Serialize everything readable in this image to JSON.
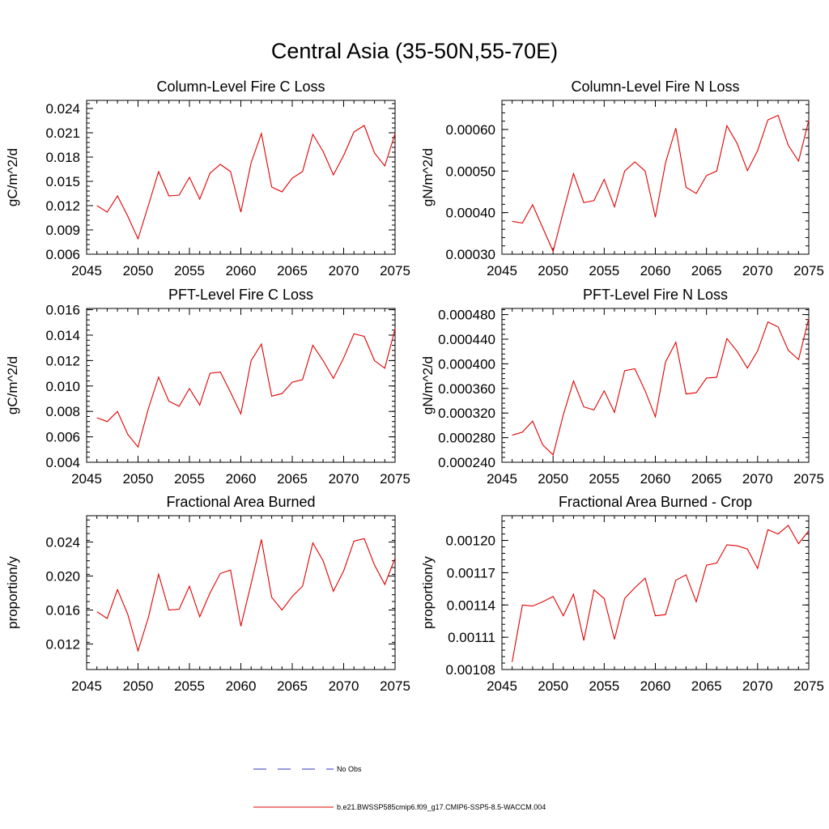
{
  "figure": {
    "title": "Central Asia (35-50N,55-70E)"
  },
  "legend": {
    "entries": [
      {
        "label": "No Obs",
        "color": "#3030c0",
        "style": "dashed"
      },
      {
        "label": "b.e21.BWSSP585cmip6.f09_g17.CMIP6-SSP5-8.5-WACCM.004",
        "color": "#e00000",
        "style": "solid"
      }
    ]
  },
  "chart_data": [
    {
      "type": "line",
      "title": "Column-Level Fire C Loss",
      "ylabel": "gC/m^2/d",
      "xlim": [
        2045,
        2075
      ],
      "ylim": [
        0.006,
        0.025
      ],
      "xticks": [
        "2045",
        "2050",
        "2055",
        "2060",
        "2065",
        "2070",
        "2075"
      ],
      "yticks": [
        "0.006",
        "0.009",
        "0.012",
        "0.015",
        "0.018",
        "0.021",
        "0.024"
      ],
      "series": [
        {
          "color": "#e00000",
          "x": [
            2046,
            2047,
            2048,
            2049,
            2050,
            2051,
            2052,
            2053,
            2054,
            2055,
            2056,
            2057,
            2058,
            2059,
            2060,
            2061,
            2062,
            2063,
            2064,
            2065,
            2066,
            2067,
            2068,
            2069,
            2070,
            2071,
            2072,
            2073,
            2074,
            2075
          ],
          "y": [
            0.012,
            0.0112,
            0.0132,
            0.0107,
            0.0079,
            0.012,
            0.0162,
            0.0132,
            0.0133,
            0.0155,
            0.0128,
            0.016,
            0.0171,
            0.0162,
            0.0112,
            0.0173,
            0.0209,
            0.0143,
            0.0137,
            0.0154,
            0.0162,
            0.0208,
            0.0187,
            0.0158,
            0.0182,
            0.0211,
            0.0219,
            0.0185,
            0.0169,
            0.0209
          ]
        }
      ]
    },
    {
      "type": "line",
      "title": "Column-Level Fire N Loss",
      "ylabel": "gN/m^2/d",
      "xlim": [
        2045,
        2075
      ],
      "ylim": [
        0.0003,
        0.00067
      ],
      "xticks": [
        "2045",
        "2050",
        "2055",
        "2060",
        "2065",
        "2070",
        "2075"
      ],
      "yticks": [
        "0.00030",
        "0.00040",
        "0.00050",
        "0.00060"
      ],
      "series": [
        {
          "color": "#e00000",
          "x": [
            2046,
            2047,
            2048,
            2049,
            2050,
            2051,
            2052,
            2053,
            2054,
            2055,
            2056,
            2057,
            2058,
            2059,
            2060,
            2061,
            2062,
            2063,
            2064,
            2065,
            2066,
            2067,
            2068,
            2069,
            2070,
            2071,
            2072,
            2073,
            2074,
            2075
          ],
          "y": [
            0.000379,
            0.000375,
            0.000419,
            0.000363,
            0.000307,
            0.000402,
            0.000494,
            0.000424,
            0.000429,
            0.00048,
            0.000414,
            0.0005,
            0.000522,
            0.0005,
            0.000389,
            0.00052,
            0.000603,
            0.000461,
            0.000446,
            0.000489,
            0.0005,
            0.000609,
            0.000566,
            0.000501,
            0.000549,
            0.000623,
            0.000634,
            0.000562,
            0.000524,
            0.000622
          ]
        }
      ]
    },
    {
      "type": "line",
      "title": "PFT-Level Fire C Loss",
      "ylabel": "gC/m^2/d",
      "xlim": [
        2045,
        2075
      ],
      "ylim": [
        0.004,
        0.0161
      ],
      "xticks": [
        "2045",
        "2050",
        "2055",
        "2060",
        "2065",
        "2070",
        "2075"
      ],
      "yticks": [
        "0.004",
        "0.006",
        "0.008",
        "0.010",
        "0.012",
        "0.014",
        "0.016"
      ],
      "series": [
        {
          "color": "#e00000",
          "x": [
            2046,
            2047,
            2048,
            2049,
            2050,
            2051,
            2052,
            2053,
            2054,
            2055,
            2056,
            2057,
            2058,
            2059,
            2060,
            2061,
            2062,
            2063,
            2064,
            2065,
            2066,
            2067,
            2068,
            2069,
            2070,
            2071,
            2072,
            2073,
            2074,
            2075
          ],
          "y": [
            0.0075,
            0.0072,
            0.008,
            0.0062,
            0.0052,
            0.0082,
            0.0107,
            0.0088,
            0.0084,
            0.0098,
            0.0085,
            0.011,
            0.0111,
            0.0095,
            0.0078,
            0.012,
            0.0133,
            0.0092,
            0.0094,
            0.0103,
            0.0105,
            0.0132,
            0.012,
            0.0106,
            0.0122,
            0.0141,
            0.0139,
            0.012,
            0.0114,
            0.0145
          ]
        }
      ]
    },
    {
      "type": "line",
      "title": "PFT-Level Fire N Loss",
      "ylabel": "gN/m^2/d",
      "xlim": [
        2045,
        2075
      ],
      "ylim": [
        0.00024,
        0.00049
      ],
      "xticks": [
        "2045",
        "2050",
        "2055",
        "2060",
        "2065",
        "2070",
        "2075"
      ],
      "yticks": [
        "0.000240",
        "0.000280",
        "0.000320",
        "0.000360",
        "0.000400",
        "0.000440",
        "0.000480"
      ],
      "series": [
        {
          "color": "#e00000",
          "x": [
            2046,
            2047,
            2048,
            2049,
            2050,
            2051,
            2052,
            2053,
            2054,
            2055,
            2056,
            2057,
            2058,
            2059,
            2060,
            2061,
            2062,
            2063,
            2064,
            2065,
            2066,
            2067,
            2068,
            2069,
            2070,
            2071,
            2072,
            2073,
            2074,
            2075
          ],
          "y": [
            0.000284,
            0.000289,
            0.000307,
            0.000268,
            0.000252,
            0.000317,
            0.000372,
            0.00033,
            0.000325,
            0.000356,
            0.000321,
            0.000389,
            0.000392,
            0.000356,
            0.000314,
            0.000403,
            0.000435,
            0.000351,
            0.000353,
            0.000377,
            0.000378,
            0.000441,
            0.00042,
            0.000393,
            0.000421,
            0.000468,
            0.00046,
            0.000422,
            0.000407,
            0.000474
          ]
        }
      ]
    },
    {
      "type": "line",
      "title": "Fractional Area Burned",
      "ylabel": "proportion/y",
      "xlim": [
        2045,
        2075
      ],
      "ylim": [
        0.009,
        0.0271
      ],
      "xticks": [
        "2045",
        "2050",
        "2055",
        "2060",
        "2065",
        "2070",
        "2075"
      ],
      "yticks": [
        "0.012",
        "0.016",
        "0.020",
        "0.024"
      ],
      "series": [
        {
          "color": "#e00000",
          "x": [
            2046,
            2047,
            2048,
            2049,
            2050,
            2051,
            2052,
            2053,
            2054,
            2055,
            2056,
            2057,
            2058,
            2059,
            2060,
            2061,
            2062,
            2063,
            2064,
            2065,
            2066,
            2067,
            2068,
            2069,
            2070,
            2071,
            2072,
            2073,
            2074,
            2075
          ],
          "y": [
            0.0158,
            0.015,
            0.0184,
            0.0155,
            0.0112,
            0.0151,
            0.0202,
            0.016,
            0.0161,
            0.0188,
            0.0152,
            0.018,
            0.0203,
            0.0207,
            0.0141,
            0.0191,
            0.0243,
            0.0175,
            0.016,
            0.0176,
            0.0188,
            0.0239,
            0.0218,
            0.0182,
            0.0206,
            0.0241,
            0.0244,
            0.0213,
            0.019,
            0.0221
          ]
        }
      ]
    },
    {
      "type": "line",
      "title": "Fractional Area Burned - Crop",
      "ylabel": "proportion/y",
      "xlim": [
        2045,
        2075
      ],
      "ylim": [
        0.00108,
        0.001223
      ],
      "xticks": [
        "2045",
        "2050",
        "2055",
        "2060",
        "2065",
        "2070",
        "2075"
      ],
      "yticks": [
        "0.00108",
        "0.00111",
        "0.00114",
        "0.00117",
        "0.00120"
      ],
      "series": [
        {
          "color": "#e00000",
          "x": [
            2046,
            2047,
            2048,
            2049,
            2050,
            2051,
            2052,
            2053,
            2054,
            2055,
            2056,
            2057,
            2058,
            2059,
            2060,
            2061,
            2062,
            2063,
            2064,
            2065,
            2066,
            2067,
            2068,
            2069,
            2070,
            2071,
            2072,
            2073,
            2074,
            2075
          ],
          "y": [
            0.001087,
            0.00114,
            0.001139,
            0.001143,
            0.001148,
            0.00113,
            0.00115,
            0.001107,
            0.001154,
            0.001146,
            0.001108,
            0.001146,
            0.001156,
            0.001165,
            0.00113,
            0.001131,
            0.001163,
            0.001168,
            0.001143,
            0.001177,
            0.001179,
            0.001196,
            0.001195,
            0.001192,
            0.001174,
            0.00121,
            0.001206,
            0.001214,
            0.001197,
            0.001209
          ]
        }
      ]
    }
  ]
}
